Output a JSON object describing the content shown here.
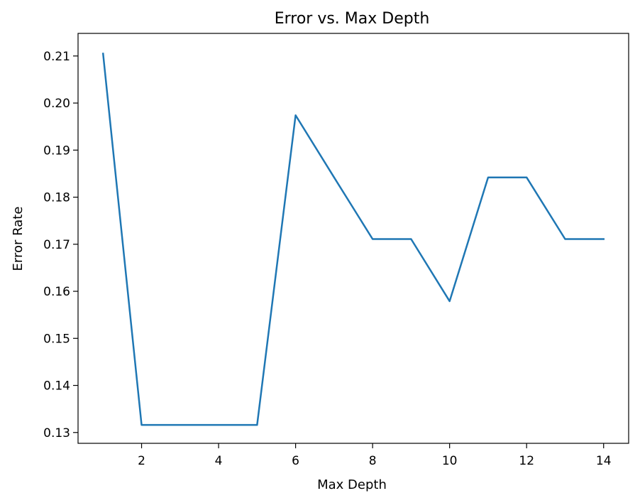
{
  "chart_data": {
    "type": "line",
    "title": "Error vs. Max Depth",
    "xlabel": "Max Depth",
    "ylabel": "Error Rate",
    "xlim": [
      0.35,
      14.65
    ],
    "ylim": [
      0.1277,
      0.2148
    ],
    "x_ticks": [
      2,
      4,
      6,
      8,
      10,
      12,
      14
    ],
    "x_tick_labels": [
      "2",
      "4",
      "6",
      "8",
      "10",
      "12",
      "14"
    ],
    "y_ticks": [
      0.13,
      0.14,
      0.15,
      0.16,
      0.17,
      0.18,
      0.19,
      0.2,
      0.21
    ],
    "y_tick_labels": [
      "0.13",
      "0.14",
      "0.15",
      "0.16",
      "0.17",
      "0.18",
      "0.19",
      "0.20",
      "0.21"
    ],
    "grid": false,
    "series": [
      {
        "color": "#1f77b4",
        "x": [
          1,
          2,
          3,
          4,
          5,
          6,
          7,
          8,
          9,
          10,
          11,
          12,
          13,
          14
        ],
        "y": [
          0.2105,
          0.1316,
          0.1316,
          0.1316,
          0.1316,
          0.1974,
          0.1842,
          0.1711,
          0.1711,
          0.1579,
          0.1842,
          0.1842,
          0.1711,
          0.1711
        ]
      }
    ]
  }
}
